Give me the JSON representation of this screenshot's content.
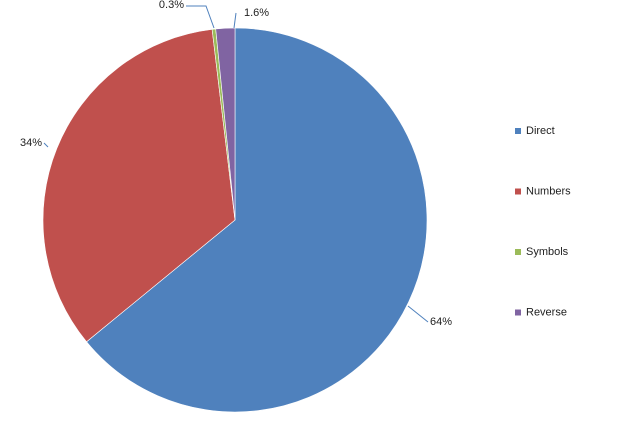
{
  "chart_data": {
    "type": "pie",
    "categories": [
      "Direct",
      "Numbers",
      "Symbols",
      "Reverse"
    ],
    "values": [
      64,
      34,
      0.3,
      1.6
    ],
    "value_labels": [
      "64%",
      "34%",
      "0.3%",
      "1.6%"
    ],
    "colors": [
      "#4f81bd",
      "#c0504d",
      "#9bbb59",
      "#8064a2"
    ],
    "legend": "right"
  }
}
